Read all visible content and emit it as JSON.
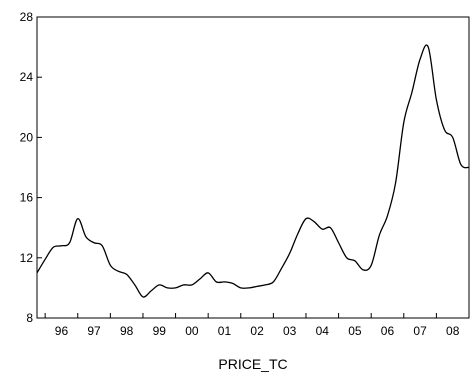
{
  "chart_data": {
    "type": "line",
    "title": "",
    "xlabel": "PRICE_TC",
    "ylabel": "",
    "ylim": [
      8,
      28
    ],
    "yticks": [
      8,
      12,
      16,
      20,
      24,
      28
    ],
    "xlim": [
      1995.75,
      2009.0
    ],
    "x_categories": [
      "96",
      "97",
      "98",
      "99",
      "00",
      "01",
      "02",
      "03",
      "04",
      "05",
      "06",
      "07",
      "08"
    ],
    "grid": false,
    "legend": "none",
    "line_color": "#000000",
    "series": [
      {
        "x": [
          1995.75,
          1996.0,
          1996.25,
          1996.5,
          1996.75,
          1997.0,
          1997.25,
          1997.5,
          1997.75,
          1998.0,
          1998.25,
          1998.5,
          1998.75,
          1999.0,
          1999.25,
          1999.5,
          1999.75,
          2000.0,
          2000.25,
          2000.5,
          2000.75,
          2001.0,
          2001.25,
          2001.5,
          2001.75,
          2002.0,
          2002.25,
          2002.5,
          2002.75,
          2003.0,
          2003.25,
          2003.5,
          2003.75,
          2004.0,
          2004.25,
          2004.5,
          2004.75,
          2005.0,
          2005.25,
          2005.5,
          2005.75,
          2006.0,
          2006.25,
          2006.5,
          2006.75,
          2007.0,
          2007.25,
          2007.5,
          2007.75,
          2008.0,
          2008.25,
          2008.5,
          2008.75,
          2009.0
        ],
        "values": [
          11.0,
          11.9,
          12.7,
          12.8,
          13.0,
          14.6,
          13.4,
          13.0,
          12.8,
          11.5,
          11.1,
          10.9,
          10.2,
          9.4,
          9.8,
          10.2,
          10.0,
          10.0,
          10.2,
          10.2,
          10.6,
          11.0,
          10.4,
          10.4,
          10.3,
          10.0,
          10.0,
          10.1,
          10.2,
          10.4,
          11.3,
          12.3,
          13.6,
          14.6,
          14.4,
          13.9,
          14.0,
          13.0,
          12.0,
          11.8,
          11.2,
          11.5,
          13.5,
          14.8,
          17.0,
          21.0,
          23.0,
          25.2,
          26.0,
          22.5,
          20.5,
          20.0,
          18.2,
          18.0
        ]
      }
    ]
  }
}
